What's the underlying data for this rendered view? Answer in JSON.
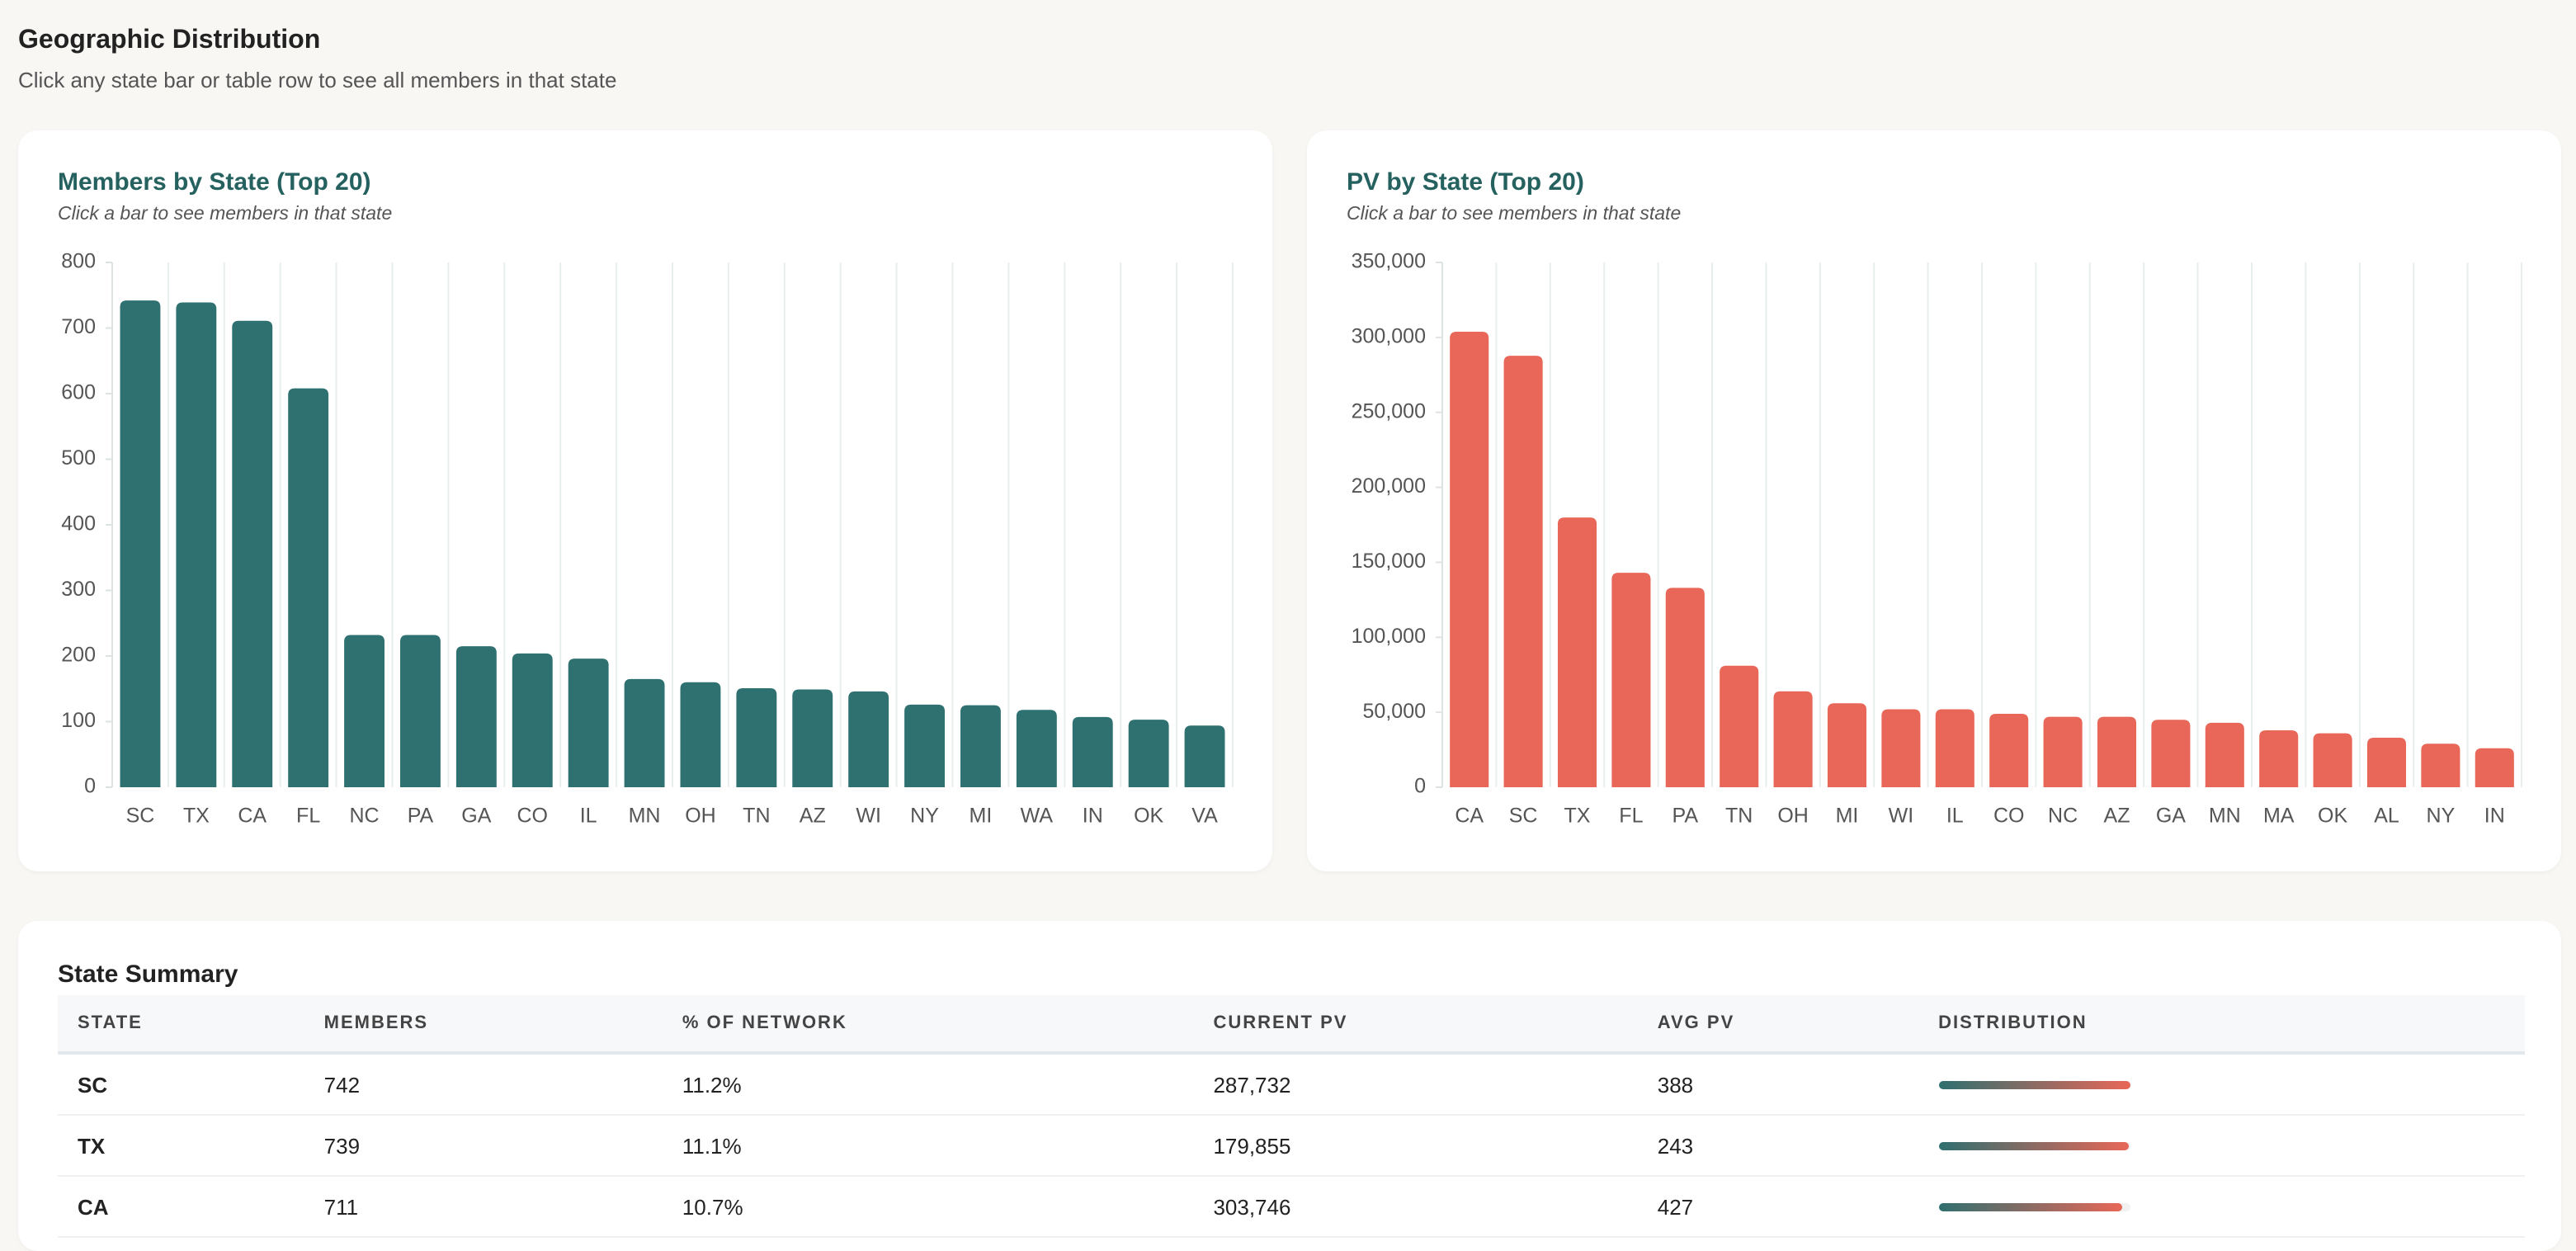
{
  "header": {
    "title": "Geographic Distribution",
    "subtitle": "Click any state bar or table row to see all members in that state"
  },
  "chart_data": [
    {
      "type": "bar",
      "title": "Members by State (Top 20)",
      "subtitle": "Click a bar to see members in that state",
      "color": "#2f7070",
      "categories": [
        "SC",
        "TX",
        "CA",
        "FL",
        "NC",
        "PA",
        "GA",
        "CO",
        "IL",
        "MN",
        "OH",
        "TN",
        "AZ",
        "WI",
        "NY",
        "MI",
        "WA",
        "IN",
        "OK",
        "VA"
      ],
      "values": [
        742,
        739,
        711,
        608,
        232,
        232,
        215,
        204,
        196,
        165,
        160,
        151,
        149,
        146,
        126,
        125,
        118,
        107,
        103,
        94
      ],
      "ylim": [
        0,
        800
      ],
      "yticks": [
        0,
        100,
        200,
        300,
        400,
        500,
        600,
        700,
        800
      ]
    },
    {
      "type": "bar",
      "title": "PV by State (Top 20)",
      "subtitle": "Click a bar to see members in that state",
      "color": "#e86758",
      "categories": [
        "CA",
        "SC",
        "TX",
        "FL",
        "PA",
        "TN",
        "OH",
        "MI",
        "WI",
        "IL",
        "CO",
        "NC",
        "AZ",
        "GA",
        "MN",
        "MA",
        "OK",
        "AL",
        "NY",
        "IN"
      ],
      "values": [
        303746,
        287732,
        179855,
        143000,
        133000,
        81000,
        64000,
        56000,
        52000,
        52000,
        49000,
        47000,
        47000,
        45000,
        43000,
        38000,
        36000,
        33000,
        29000,
        26000
      ],
      "ylim": [
        0,
        350000
      ],
      "yticks": [
        0,
        {
          "value": 50000,
          "label": "50,000"
        },
        {
          "value": 100000,
          "label": "100,000"
        },
        {
          "value": 150000,
          "label": "150,000"
        },
        {
          "value": 200000,
          "label": "200,000"
        },
        {
          "value": 250000,
          "label": "250,000"
        },
        {
          "value": 300000,
          "label": "300,000"
        },
        {
          "value": 350000,
          "label": "350,000"
        }
      ]
    }
  ],
  "table": {
    "title": "State Summary",
    "columns": [
      "STATE",
      "MEMBERS",
      "% OF NETWORK",
      "CURRENT PV",
      "AVG PV",
      "DISTRIBUTION"
    ],
    "rows": [
      [
        "SC",
        742,
        "11.2%",
        "287,732",
        388
      ],
      [
        "TX",
        739,
        "11.1%",
        "179,855",
        243
      ],
      [
        "CA",
        711,
        "10.7%",
        "303,746",
        427
      ]
    ]
  }
}
